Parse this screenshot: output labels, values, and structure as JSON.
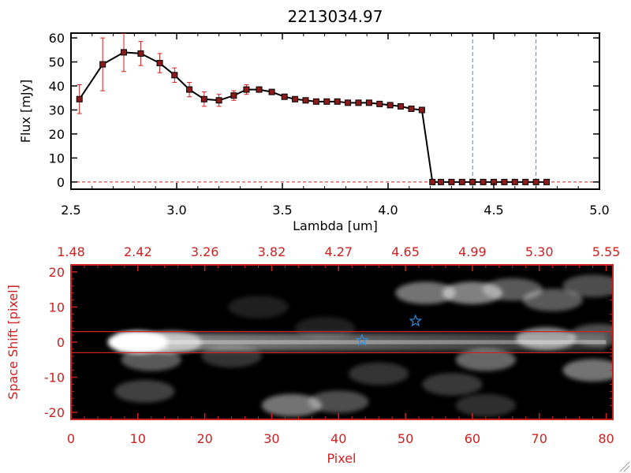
{
  "colors": {
    "red": "#cc2222",
    "black": "#000000",
    "blue": "#2f8fe0",
    "marker": "#8b1a1a"
  },
  "chart_data": [
    {
      "type": "line",
      "title": "2213034.97",
      "xlabel": "Lambda [um]",
      "ylabel": "Flux [mJy]",
      "xlim": [
        2.5,
        5.0
      ],
      "ylim": [
        -3,
        62
      ],
      "x_ticks": [
        "2.5",
        "3.0",
        "3.5",
        "4.0",
        "4.5",
        "5.0"
      ],
      "y_ticks": [
        "0",
        "10",
        "20",
        "30",
        "40",
        "50",
        "60"
      ],
      "x_tick_values": [
        2.5,
        3.0,
        3.5,
        4.0,
        4.5,
        5.0
      ],
      "y_tick_values": [
        0,
        10,
        20,
        30,
        40,
        50,
        60
      ],
      "vlines": [
        4.4,
        4.7
      ],
      "hline": 0,
      "series": [
        {
          "name": "flux",
          "x": [
            2.54,
            2.65,
            2.75,
            2.83,
            2.92,
            2.99,
            3.06,
            3.13,
            3.2,
            3.27,
            3.33,
            3.39,
            3.45,
            3.51,
            3.56,
            3.61,
            3.66,
            3.71,
            3.76,
            3.81,
            3.86,
            3.91,
            3.96,
            4.01,
            4.06,
            4.11,
            4.16,
            4.21,
            4.25,
            4.3,
            4.35,
            4.4,
            4.45,
            4.5,
            4.55,
            4.6,
            4.65,
            4.7,
            4.75
          ],
          "y": [
            34.5,
            49,
            54,
            53.5,
            49.5,
            44.5,
            38.5,
            34.5,
            34,
            36,
            38.5,
            38.5,
            37.5,
            35.5,
            34.5,
            34,
            33.5,
            33.5,
            33.5,
            33,
            33,
            33,
            32.5,
            32,
            31.5,
            30.5,
            30,
            0,
            0,
            0,
            0,
            0,
            0,
            0,
            0,
            0,
            0,
            0,
            0
          ],
          "err": [
            6,
            11,
            8,
            5,
            4,
            3,
            3,
            3,
            2.5,
            2,
            2,
            1,
            1,
            0.5,
            0.5,
            0.5,
            0.5,
            0.5,
            0.5,
            0.5,
            0.5,
            0.5,
            0.5,
            0.5,
            0.5,
            0.5,
            0.5,
            0,
            0,
            0,
            0,
            0,
            0,
            0,
            0,
            0,
            0,
            0,
            0
          ]
        }
      ]
    },
    {
      "type": "heatmap",
      "xlabel": "Pixel",
      "ylabel": "Space Shift [pixel]",
      "xlim": [
        0,
        81
      ],
      "ylim": [
        -22,
        22
      ],
      "x_ticks": [
        "0",
        "10",
        "20",
        "30",
        "40",
        "50",
        "60",
        "70",
        "80"
      ],
      "x_tick_values": [
        0,
        10,
        20,
        30,
        40,
        50,
        60,
        70,
        80
      ],
      "y_ticks": [
        "-20",
        "-10",
        "0",
        "10",
        "20"
      ],
      "y_tick_values": [
        -20,
        -10,
        0,
        10,
        20
      ],
      "top_axis_labels": [
        "1.48",
        "2.42",
        "3.26",
        "3.82",
        "4.27",
        "4.65",
        "4.99",
        "5.30",
        "5.55"
      ],
      "hlines": [
        3,
        -3
      ],
      "stars": [
        {
          "x": 43.5,
          "y": 0.5
        },
        {
          "x": 51.5,
          "y": 6
        }
      ],
      "blobs": [
        {
          "x": 10,
          "y": 0,
          "amp": 1.0
        },
        {
          "x": 15,
          "y": 0,
          "amp": 0.55
        },
        {
          "x": 12,
          "y": -5,
          "amp": 0.35
        },
        {
          "x": 11,
          "y": -14,
          "amp": 0.25
        },
        {
          "x": 24,
          "y": -4,
          "amp": 0.2
        },
        {
          "x": 33,
          "y": -18,
          "amp": 0.45
        },
        {
          "x": 40,
          "y": -17,
          "amp": 0.3
        },
        {
          "x": 53,
          "y": 14,
          "amp": 0.45
        },
        {
          "x": 60,
          "y": 14,
          "amp": 0.5
        },
        {
          "x": 66,
          "y": 15,
          "amp": 0.35
        },
        {
          "x": 72,
          "y": 12,
          "amp": 0.35
        },
        {
          "x": 78,
          "y": 16,
          "amp": 0.3
        },
        {
          "x": 71,
          "y": 1,
          "amp": 0.55
        },
        {
          "x": 79,
          "y": 2,
          "amp": 0.3
        },
        {
          "x": 62,
          "y": -5,
          "amp": 0.4
        },
        {
          "x": 78,
          "y": -8,
          "amp": 0.45
        },
        {
          "x": 57,
          "y": -12,
          "amp": 0.22
        },
        {
          "x": 46,
          "y": -9,
          "amp": 0.2
        },
        {
          "x": 62,
          "y": -18,
          "amp": 0.18
        },
        {
          "x": 28,
          "y": 10,
          "amp": 0.12
        },
        {
          "x": 38,
          "y": 4,
          "amp": 0.12
        }
      ],
      "trace": [
        {
          "x": 7,
          "x2": 80,
          "y": 0,
          "amp_start": 0.55,
          "amp_end": 0.18
        }
      ]
    }
  ]
}
